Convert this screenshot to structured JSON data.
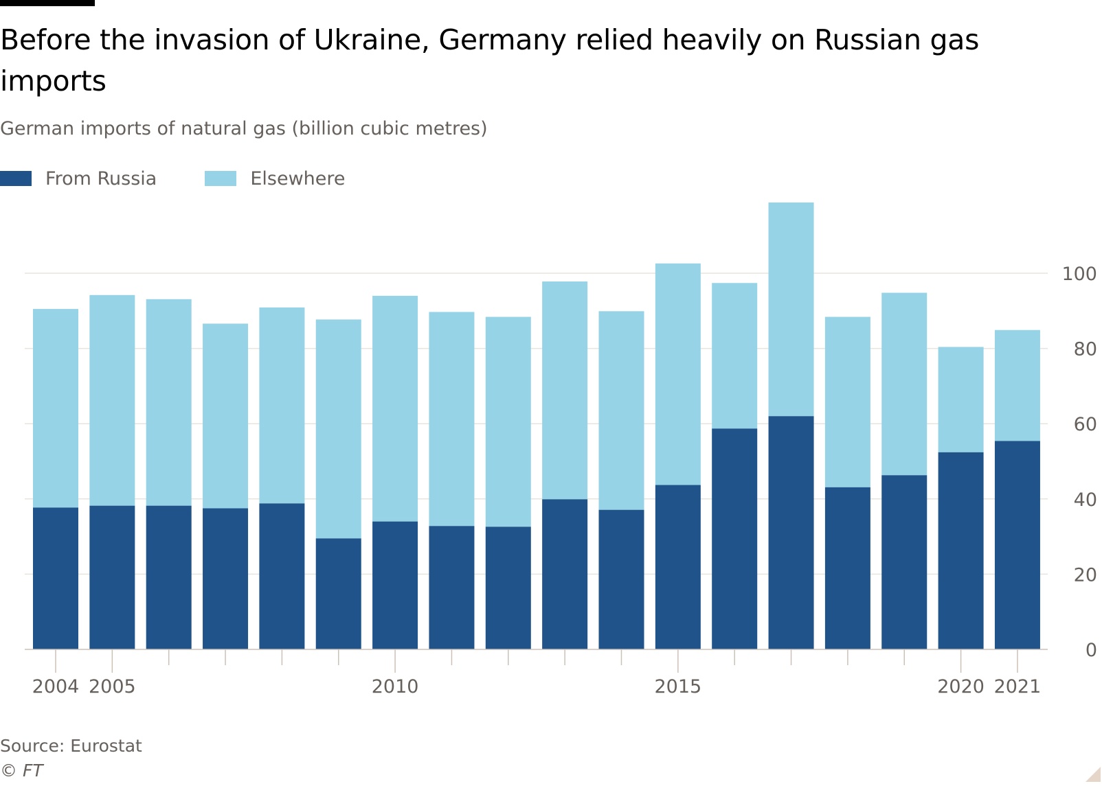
{
  "title": "Before the invasion of Ukraine, Germany relied heavily on Russian gas imports",
  "subtitle": "German imports of natural gas (billion cubic metres)",
  "source": "Source: Eurostat",
  "copyright": "© FT",
  "colors": {
    "russia": "#1f538a",
    "elsewhere": "#96d3e6",
    "grid": "#e9e3de",
    "text": "#66605c"
  },
  "legend": [
    {
      "label": "From Russia",
      "color": "#1f538a"
    },
    {
      "label": "Elsewhere",
      "color": "#96d3e6"
    }
  ],
  "chart_data": {
    "type": "bar",
    "stacked": true,
    "title": "Before the invasion of Ukraine, Germany relied heavily on Russian gas imports",
    "subtitle": "German imports of natural gas (billion cubic metres)",
    "xlabel": "",
    "ylabel": "",
    "categories": [
      "2004",
      "2005",
      "2006",
      "2007",
      "2008",
      "2009",
      "2010",
      "2011",
      "2012",
      "2013",
      "2014",
      "2015",
      "2016",
      "2017",
      "2018",
      "2019",
      "2020",
      "2021"
    ],
    "x_tick_labels": [
      "2004",
      "2005",
      "2010",
      "2015",
      "2020",
      "2021"
    ],
    "series": [
      {
        "name": "From Russia",
        "values": [
          37.7,
          38.2,
          38.2,
          37.5,
          38.8,
          29.5,
          34.0,
          32.8,
          32.6,
          39.9,
          37.1,
          43.7,
          58.7,
          62.0,
          43.1,
          46.3,
          52.4,
          55.4
        ]
      },
      {
        "name": "Elsewhere",
        "values": [
          52.8,
          56.0,
          54.9,
          49.1,
          52.1,
          58.2,
          60.0,
          56.9,
          55.8,
          57.9,
          52.8,
          58.9,
          38.7,
          56.8,
          45.3,
          48.5,
          28.0,
          29.5
        ]
      }
    ],
    "totals": [
      90.5,
      94.2,
      93.1,
      86.6,
      90.9,
      87.7,
      94.0,
      89.7,
      88.4,
      97.8,
      89.9,
      102.6,
      97.4,
      118.8,
      88.4,
      94.8,
      80.4,
      84.9
    ],
    "ylim": [
      0,
      120
    ],
    "y_ticks": [
      0,
      20,
      40,
      60,
      80,
      100
    ],
    "y_axis_side": "right",
    "grid": true,
    "legend_position": "top-left"
  }
}
